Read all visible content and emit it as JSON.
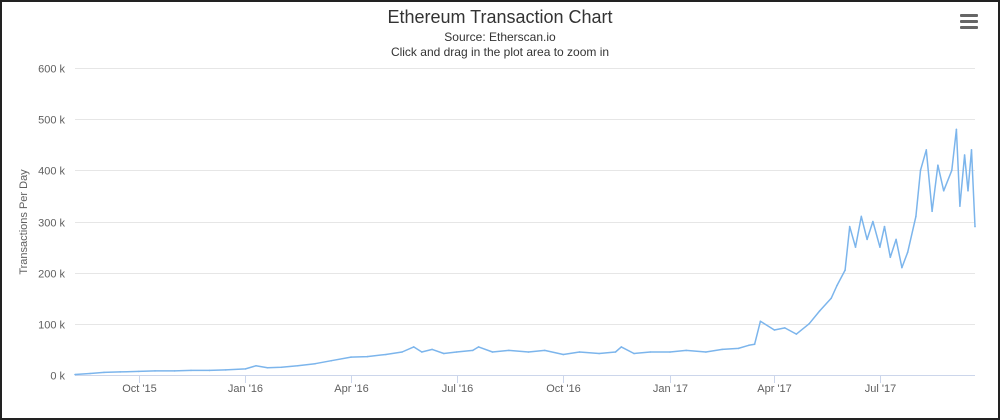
{
  "chart_data": {
    "type": "line",
    "title": "Ethereum Transaction Chart",
    "subtitle": "Source: Etherscan.io",
    "subtitle2": "Click and drag in the plot area to zoom in",
    "xlabel": "",
    "ylabel": "Transactions Per Day",
    "ylim": [
      0,
      600000
    ],
    "yticks": [
      0,
      100000,
      200000,
      300000,
      400000,
      500000,
      600000
    ],
    "ytick_labels": [
      "0 k",
      "100 k",
      "200 k",
      "300 k",
      "400 k",
      "500 k",
      "600 k"
    ],
    "xticks": [
      "2015-10-01",
      "2016-01-01",
      "2016-04-01",
      "2016-07-01",
      "2016-10-01",
      "2017-01-01",
      "2017-04-01",
      "2017-07-01"
    ],
    "xtick_labels": [
      "Oct '15",
      "Jan '16",
      "Apr '16",
      "Jul '16",
      "Oct '16",
      "Jan '17",
      "Apr '17",
      "Jul '17"
    ],
    "xlim": [
      "2015-08-07",
      "2017-09-21"
    ],
    "grid": true,
    "legend": "none",
    "line_color": "#7cb5ec",
    "series": [
      {
        "x": [
          "2015-08-07",
          "2015-08-20",
          "2015-09-01",
          "2015-09-15",
          "2015-10-01",
          "2015-10-15",
          "2015-11-01",
          "2015-11-15",
          "2015-12-01",
          "2015-12-15",
          "2016-01-01",
          "2016-01-10",
          "2016-01-20",
          "2016-02-01",
          "2016-02-15",
          "2016-03-01",
          "2016-03-15",
          "2016-04-01",
          "2016-04-15",
          "2016-05-01",
          "2016-05-15",
          "2016-05-25",
          "2016-06-01",
          "2016-06-10",
          "2016-06-20",
          "2016-07-01",
          "2016-07-15",
          "2016-07-20",
          "2016-08-01",
          "2016-08-15",
          "2016-09-01",
          "2016-09-15",
          "2016-10-01",
          "2016-10-15",
          "2016-11-01",
          "2016-11-15",
          "2016-11-20",
          "2016-12-01",
          "2016-12-15",
          "2017-01-01",
          "2017-01-15",
          "2017-02-01",
          "2017-02-15",
          "2017-03-01",
          "2017-03-10",
          "2017-03-15",
          "2017-03-20",
          "2017-04-01",
          "2017-04-10",
          "2017-04-20",
          "2017-05-01",
          "2017-05-10",
          "2017-05-20",
          "2017-05-25",
          "2017-06-01",
          "2017-06-05",
          "2017-06-10",
          "2017-06-15",
          "2017-06-20",
          "2017-06-25",
          "2017-07-01",
          "2017-07-05",
          "2017-07-10",
          "2017-07-15",
          "2017-07-20",
          "2017-07-25",
          "2017-08-01",
          "2017-08-05",
          "2017-08-10",
          "2017-08-15",
          "2017-08-20",
          "2017-08-25",
          "2017-09-01",
          "2017-09-05",
          "2017-09-08",
          "2017-09-12",
          "2017-09-15",
          "2017-09-18",
          "2017-09-21"
        ],
        "values": [
          1000,
          3000,
          5000,
          6000,
          7000,
          8000,
          8000,
          9000,
          9000,
          10000,
          12000,
          18000,
          14000,
          15000,
          18000,
          22000,
          28000,
          35000,
          36000,
          40000,
          45000,
          55000,
          45000,
          50000,
          42000,
          45000,
          48000,
          55000,
          45000,
          48000,
          45000,
          48000,
          40000,
          45000,
          42000,
          45000,
          55000,
          42000,
          45000,
          45000,
          48000,
          45000,
          50000,
          52000,
          58000,
          60000,
          105000,
          88000,
          92000,
          80000,
          100000,
          125000,
          150000,
          175000,
          205000,
          290000,
          250000,
          310000,
          265000,
          300000,
          250000,
          290000,
          230000,
          265000,
          210000,
          240000,
          310000,
          400000,
          440000,
          320000,
          410000,
          360000,
          400000,
          480000,
          330000,
          430000,
          360000,
          440000,
          290000
        ]
      }
    ]
  }
}
